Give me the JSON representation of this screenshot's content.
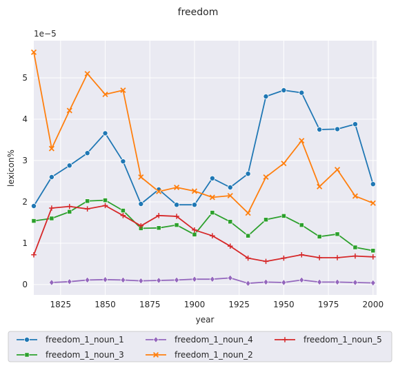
{
  "chart_data": {
    "type": "line",
    "title": "freedom",
    "xlabel": "year",
    "ylabel": "lexicon%",
    "y_offset_label": "1e−5",
    "xlim": [
      1810,
      2002
    ],
    "ylim": [
      -0.25,
      5.9
    ],
    "x_ticks": [
      1825,
      1850,
      1875,
      1900,
      1925,
      1950,
      1975,
      2000
    ],
    "y_ticks": [
      0,
      1,
      2,
      3,
      4,
      5
    ],
    "grid": true,
    "legend_position": "bottom",
    "series": [
      {
        "name": "freedom_1_noun_1",
        "color": "#1f77b4",
        "marker": "circle",
        "x": [
          1810,
          1820,
          1830,
          1840,
          1850,
          1860,
          1870,
          1880,
          1890,
          1900,
          1910,
          1920,
          1930,
          1940,
          1950,
          1960,
          1970,
          1980,
          1990,
          2000
        ],
        "y": [
          1.9,
          2.6,
          2.88,
          3.18,
          3.66,
          2.98,
          1.95,
          2.3,
          1.93,
          1.93,
          2.57,
          2.35,
          2.68,
          4.55,
          4.7,
          4.64,
          3.75,
          3.76,
          3.88,
          2.43
        ]
      },
      {
        "name": "freedom_1_noun_2",
        "color": "#ff7f0e",
        "marker": "x",
        "x": [
          1810,
          1820,
          1830,
          1840,
          1850,
          1860,
          1870,
          1880,
          1890,
          1900,
          1910,
          1920,
          1930,
          1940,
          1950,
          1960,
          1970,
          1980,
          1990,
          2000
        ],
        "y": [
          5.62,
          3.29,
          4.21,
          5.1,
          4.6,
          4.7,
          2.6,
          2.25,
          2.35,
          2.26,
          2.11,
          2.15,
          1.73,
          2.6,
          2.93,
          3.48,
          2.37,
          2.78,
          2.14,
          1.97
        ]
      },
      {
        "name": "freedom_1_noun_3",
        "color": "#2ca02c",
        "marker": "square",
        "x": [
          1810,
          1820,
          1830,
          1840,
          1850,
          1860,
          1870,
          1880,
          1890,
          1900,
          1910,
          1920,
          1930,
          1940,
          1950,
          1960,
          1970,
          1980,
          1990,
          2000
        ],
        "y": [
          1.54,
          1.6,
          1.76,
          2.02,
          2.04,
          1.79,
          1.36,
          1.37,
          1.44,
          1.21,
          1.74,
          1.52,
          1.18,
          1.57,
          1.66,
          1.44,
          1.16,
          1.22,
          0.9,
          0.82
        ]
      },
      {
        "name": "freedom_1_noun_5",
        "color": "#d62728",
        "marker": "plus",
        "x": [
          1810,
          1820,
          1830,
          1840,
          1850,
          1860,
          1870,
          1880,
          1890,
          1900,
          1910,
          1920,
          1930,
          1940,
          1950,
          1960,
          1970,
          1980,
          1990,
          2000
        ],
        "y": [
          0.72,
          1.85,
          1.89,
          1.83,
          1.91,
          1.67,
          1.42,
          1.67,
          1.65,
          1.32,
          1.18,
          0.93,
          0.64,
          0.56,
          0.64,
          0.72,
          0.65,
          0.65,
          0.69,
          0.67
        ]
      },
      {
        "name": "freedom_1_noun_4",
        "color": "#9467bd",
        "marker": "diamond",
        "x": [
          1820,
          1830,
          1840,
          1850,
          1860,
          1870,
          1880,
          1890,
          1900,
          1910,
          1920,
          1930,
          1940,
          1950,
          1960,
          1970,
          1980,
          1990,
          2000
        ],
        "y": [
          0.05,
          0.07,
          0.11,
          0.12,
          0.11,
          0.09,
          0.1,
          0.11,
          0.13,
          0.13,
          0.16,
          0.03,
          0.06,
          0.05,
          0.11,
          0.06,
          0.06,
          0.05,
          0.04
        ]
      }
    ],
    "legend_order": [
      0,
      2,
      4,
      1,
      3
    ]
  }
}
